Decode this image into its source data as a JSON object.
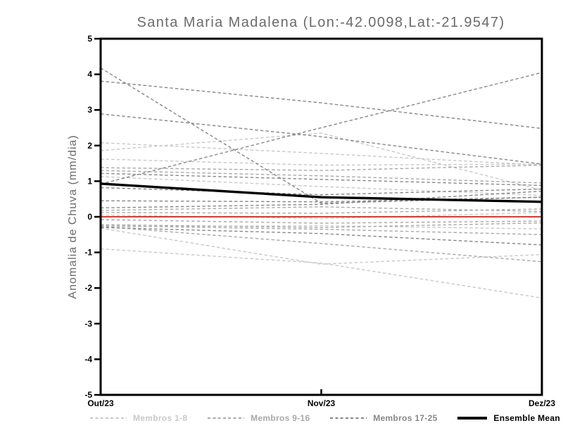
{
  "window": {
    "background": "#ffffff"
  },
  "chart_data": {
    "type": "line",
    "title": "Santa Maria Madalena (Lon:-42.0098,Lat:-21.9547)",
    "ylabel": "Anomalia de Chuva (mm/dia)",
    "x_categories": [
      "Out/23",
      "Nov/23",
      "Dez/23"
    ],
    "ylim": [
      -5,
      5
    ],
    "yticks": [
      5,
      4,
      3,
      2,
      1,
      0,
      -1,
      -2,
      -3,
      -4,
      -5
    ],
    "grid": false,
    "legend_position": "bottom",
    "legend": [
      {
        "label": "Membros 1-8",
        "color": "#c9c9c9",
        "line_style": "dashed"
      },
      {
        "label": "Membros 9-16",
        "color": "#a9a9a9",
        "line_style": "dashed"
      },
      {
        "label": "Membros 17-25",
        "color": "#878787",
        "line_style": "dashed"
      },
      {
        "label": "Ensemble Mean",
        "color": "#000000",
        "line_style": "solid-thick"
      }
    ],
    "series": [
      {
        "member": 1,
        "group": "1-8",
        "values": [
          2.08,
          1.78,
          1.45
        ]
      },
      {
        "member": 2,
        "group": "1-8",
        "values": [
          1.86,
          2.35,
          0.75
        ]
      },
      {
        "member": 3,
        "group": "1-8",
        "values": [
          1.62,
          1.45,
          1.48
        ]
      },
      {
        "member": 4,
        "group": "1-8",
        "values": [
          1.13,
          0.85,
          0.6
        ]
      },
      {
        "member": 5,
        "group": "1-8",
        "values": [
          0.05,
          -0.05,
          0.12
        ]
      },
      {
        "member": 6,
        "group": "1-8",
        "values": [
          -0.28,
          -0.25,
          -0.34
        ]
      },
      {
        "member": 7,
        "group": "1-8",
        "values": [
          -0.32,
          -1.33,
          -1.06
        ]
      },
      {
        "member": 8,
        "group": "1-8",
        "values": [
          -0.9,
          -1.3,
          -2.28
        ]
      },
      {
        "member": 9,
        "group": "9-16",
        "values": [
          1.38,
          1.3,
          1.45
        ]
      },
      {
        "member": 10,
        "group": "9-16",
        "values": [
          1.3,
          1.15,
          0.95
        ]
      },
      {
        "member": 11,
        "group": "9-16",
        "values": [
          0.18,
          0.28,
          0.15
        ]
      },
      {
        "member": 12,
        "group": "9-16",
        "values": [
          0.12,
          0.1,
          0.22
        ]
      },
      {
        "member": 13,
        "group": "9-16",
        "values": [
          -0.08,
          -0.18,
          -0.12
        ]
      },
      {
        "member": 14,
        "group": "9-16",
        "values": [
          -0.25,
          -0.35,
          -0.5
        ]
      },
      {
        "member": 15,
        "group": "9-16",
        "values": [
          -0.27,
          -0.75,
          -1.26
        ]
      },
      {
        "member": 16,
        "group": "9-16",
        "values": [
          -0.22,
          -0.3,
          -0.17
        ]
      },
      {
        "member": 17,
        "group": "17-25",
        "values": [
          4.18,
          0.38,
          0.55
        ]
      },
      {
        "member": 18,
        "group": "17-25",
        "values": [
          3.81,
          3.2,
          2.48
        ]
      },
      {
        "member": 19,
        "group": "17-25",
        "values": [
          2.89,
          2.25,
          1.48
        ]
      },
      {
        "member": 20,
        "group": "17-25",
        "values": [
          0.92,
          2.5,
          4.05
        ]
      },
      {
        "member": 21,
        "group": "17-25",
        "values": [
          1.22,
          1.05,
          0.88
        ]
      },
      {
        "member": 22,
        "group": "17-25",
        "values": [
          0.82,
          0.62,
          0.78
        ]
      },
      {
        "member": 23,
        "group": "17-25",
        "values": [
          0.45,
          0.42,
          0.55
        ]
      },
      {
        "member": 24,
        "group": "17-25",
        "values": [
          0.25,
          0.35,
          0.72
        ]
      },
      {
        "member": 25,
        "group": "17-25",
        "values": [
          -0.3,
          -0.47,
          -0.79
        ]
      }
    ],
    "zero_line": {
      "name": "zero-reference",
      "color": "#ee3224",
      "values": [
        0.0,
        0.0,
        0.0
      ]
    },
    "ensemble_mean": {
      "name": "Ensemble Mean",
      "color": "#000000",
      "values": [
        0.93,
        0.55,
        0.42
      ]
    }
  }
}
